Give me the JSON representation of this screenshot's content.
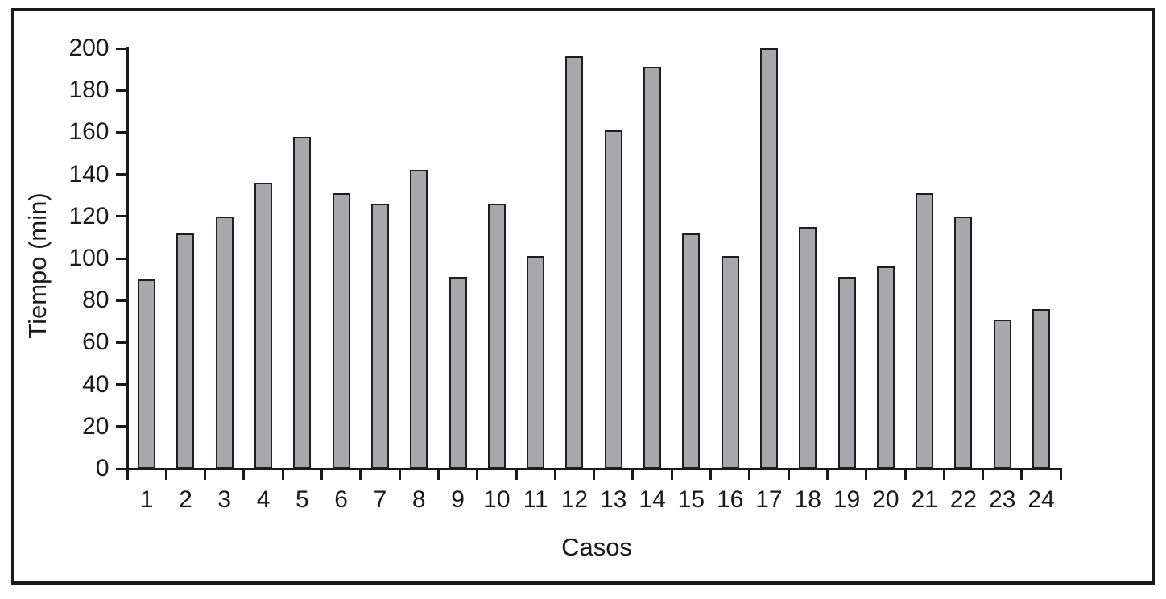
{
  "chart_data": {
    "type": "bar",
    "title": "",
    "xlabel": "Casos",
    "ylabel": "Tiempo (min)",
    "categories": [
      "1",
      "2",
      "3",
      "4",
      "5",
      "6",
      "7",
      "8",
      "9",
      "10",
      "11",
      "12",
      "13",
      "14",
      "15",
      "16",
      "17",
      "18",
      "19",
      "20",
      "21",
      "22",
      "23",
      "24"
    ],
    "values": [
      90,
      112,
      120,
      136,
      158,
      131,
      126,
      142,
      91,
      126,
      101,
      196,
      161,
      191,
      112,
      101,
      200,
      115,
      91,
      96,
      131,
      120,
      71,
      76
    ],
    "ylim": [
      0,
      200
    ],
    "ytick_step": 20,
    "grid": false,
    "legend": null,
    "bar_fill_color": "#a8a8ac",
    "bar_border_color": "#1e1e1e",
    "axis_color": "#1a1a1a"
  }
}
